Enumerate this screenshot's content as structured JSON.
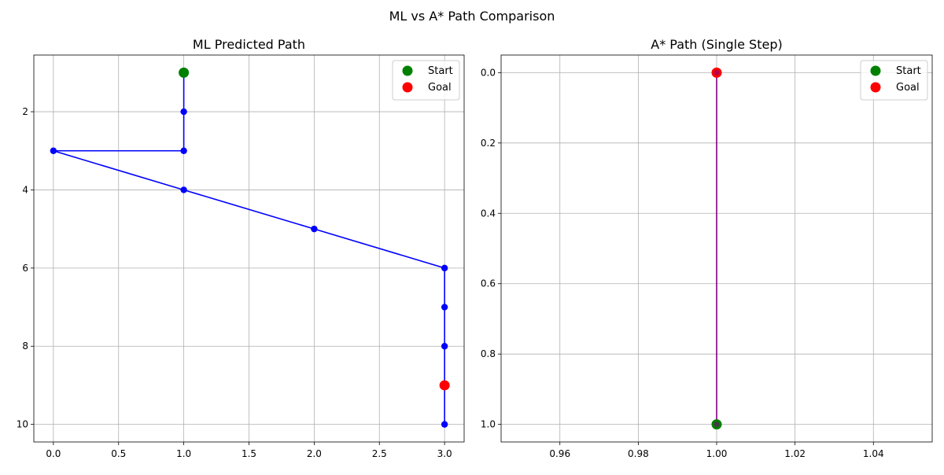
{
  "figure": {
    "suptitle": "ML vs A* Path Comparison"
  },
  "chart_data": [
    {
      "type": "line",
      "title": "ML Predicted Path",
      "xlabel": "",
      "ylabel": "",
      "xlim": [
        -0.15,
        3.15
      ],
      "ylim": [
        10.45,
        0.55
      ],
      "y_inverted": true,
      "grid": true,
      "xticks": [
        0.0,
        0.5,
        1.0,
        1.5,
        2.0,
        2.5,
        3.0
      ],
      "xtick_labels": [
        "0.0",
        "0.5",
        "1.0",
        "1.5",
        "2.0",
        "2.5",
        "3.0"
      ],
      "yticks": [
        2,
        4,
        6,
        8,
        10
      ],
      "ytick_labels": [
        "2",
        "4",
        "6",
        "8",
        "10"
      ],
      "path": {
        "color": "#0000ff",
        "x": [
          1,
          1,
          1,
          0,
          1,
          2,
          3,
          3,
          3,
          3,
          3
        ],
        "y": [
          1,
          2,
          3,
          3,
          4,
          5,
          6,
          7,
          8,
          9,
          10
        ]
      },
      "start": {
        "label": "Start",
        "x": 1,
        "y": 1,
        "color": "#008000"
      },
      "goal": {
        "label": "Goal",
        "x": 3,
        "y": 9,
        "color": "#ff0000"
      },
      "legend": {
        "placement": "upper-right",
        "entries": [
          "Start",
          "Goal"
        ]
      }
    },
    {
      "type": "line",
      "title": "A* Path (Single Step)",
      "xlabel": "",
      "ylabel": "",
      "xlim": [
        0.945,
        1.055
      ],
      "ylim": [
        1.05,
        -0.05
      ],
      "y_inverted": true,
      "grid": true,
      "xticks": [
        0.96,
        0.98,
        1.0,
        1.02,
        1.04
      ],
      "xtick_labels": [
        "0.96",
        "0.98",
        "1.00",
        "1.02",
        "1.04"
      ],
      "yticks": [
        0.0,
        0.2,
        0.4,
        0.6,
        0.8,
        1.0
      ],
      "ytick_labels": [
        "0.0",
        "0.2",
        "0.4",
        "0.6",
        "0.8",
        "1.0"
      ],
      "path": {
        "color": "#800080",
        "x": [
          1,
          1
        ],
        "y": [
          1,
          0
        ]
      },
      "start": {
        "label": "Start",
        "x": 1,
        "y": 1,
        "color": "#008000"
      },
      "goal": {
        "label": "Goal",
        "x": 1,
        "y": 0,
        "color": "#ff0000"
      },
      "legend": {
        "placement": "upper-right",
        "entries": [
          "Start",
          "Goal"
        ]
      }
    }
  ]
}
